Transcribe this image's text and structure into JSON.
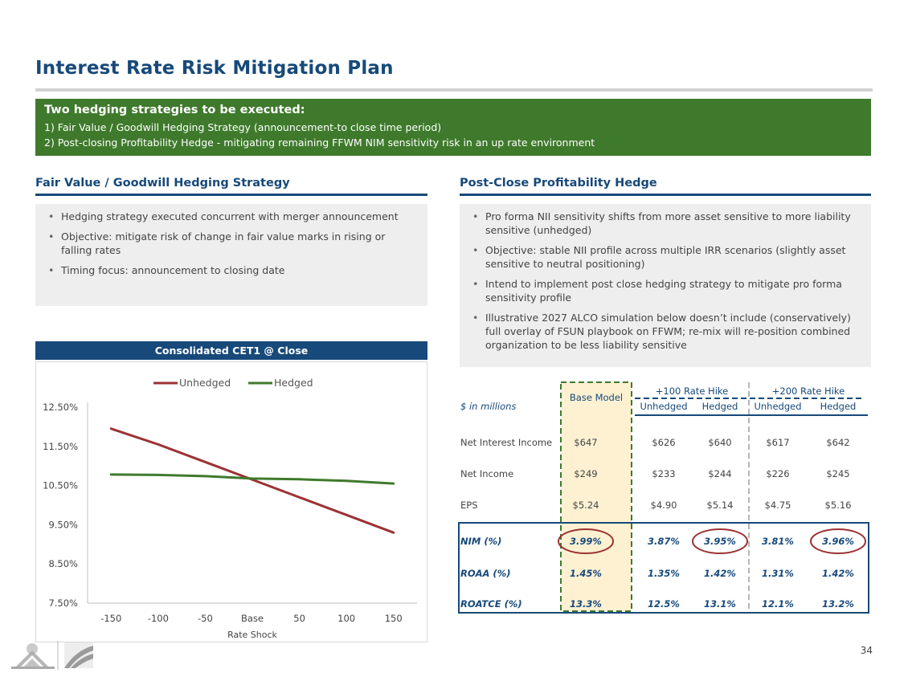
{
  "title": "Interest Rate Risk Mitigation Plan",
  "banner": {
    "heading": "Two hedging strategies to be executed:",
    "lines": [
      "1) Fair Value / Goodwill Hedging Strategy (announcement-to close time period)",
      "2) Post-closing Profitability Hedge - mitigating remaining FFWM NIM sensitivity risk in an up rate environment"
    ]
  },
  "left": {
    "heading": "Fair Value / Goodwill Hedging Strategy",
    "bullets": [
      "Hedging strategy executed concurrent with merger announcement",
      "Objective: mitigate risk of change in fair value marks in rising or falling rates",
      "Timing focus: announcement to closing date"
    ]
  },
  "right": {
    "heading": "Post-Close Profitability Hedge",
    "bullets": [
      "Pro forma NII sensitivity shifts from more asset sensitive to more liability sensitive (unhedged)",
      "Objective: stable NII profile across multiple IRR scenarios (slightly asset sensitive to neutral positioning)",
      "Intend to implement post close hedging strategy to mitigate pro forma sensitivity profile",
      "Illustrative 2027 ALCO simulation below doesn’t include (conservatively) full overlay of FSUN playbook on FFWM; re-mix will re-position combined organization to be less liability sensitive"
    ]
  },
  "chart_header": "Consolidated CET1 @ Close",
  "chart_data": {
    "type": "line",
    "title": "Consolidated CET1 @ Close",
    "xlabel": "Rate Shock",
    "ylabel": "",
    "categories": [
      "-150",
      "-100",
      "-50",
      "Base",
      "50",
      "100",
      "150"
    ],
    "series": [
      {
        "name": "Unhedged",
        "color": "#9b3234",
        "values": [
          11.95,
          11.55,
          11.1,
          10.65,
          10.2,
          9.75,
          9.3
        ]
      },
      {
        "name": "Hedged",
        "color": "#3f7a2c",
        "values": [
          10.78,
          10.77,
          10.74,
          10.68,
          10.66,
          10.62,
          10.55
        ]
      }
    ],
    "ylim": [
      7.5,
      12.5
    ],
    "yticks": [
      "7.50%",
      "8.50%",
      "9.50%",
      "10.50%",
      "11.50%",
      "12.50%"
    ],
    "legend": "top-center"
  },
  "table": {
    "units_label": "$ in millions",
    "base_header": "Base Model",
    "groups": [
      "+100 Rate Hike",
      "+200 Rate Hike"
    ],
    "subheaders": [
      "Unhedged",
      "Hedged",
      "Unhedged",
      "Hedged"
    ],
    "rows": [
      {
        "label": "Net Interest Income",
        "values": [
          "$647",
          "$626",
          "$640",
          "$617",
          "$642"
        ],
        "italic": false
      },
      {
        "label": "Net Income",
        "values": [
          "$249",
          "$233",
          "$244",
          "$226",
          "$245"
        ],
        "italic": false
      },
      {
        "label": "EPS",
        "values": [
          "$5.24",
          "$4.90",
          "$5.14",
          "$4.75",
          "$5.16"
        ],
        "italic": false
      },
      {
        "label": "NIM (%)",
        "values": [
          "3.99%",
          "3.87%",
          "3.95%",
          "3.81%",
          "3.96%"
        ],
        "italic": true
      },
      {
        "label": "ROAA (%)",
        "values": [
          "1.45%",
          "1.35%",
          "1.42%",
          "1.31%",
          "1.42%"
        ],
        "italic": true
      },
      {
        "label": "ROATCE (%)",
        "values": [
          "13.3%",
          "12.5%",
          "13.1%",
          "12.1%",
          "13.2%"
        ],
        "italic": true
      }
    ]
  },
  "colors": {
    "navy": "#17497a",
    "green": "#3f7a2c",
    "red": "#9b3234",
    "highlight": "#fdf1d2"
  },
  "page_number": "34"
}
